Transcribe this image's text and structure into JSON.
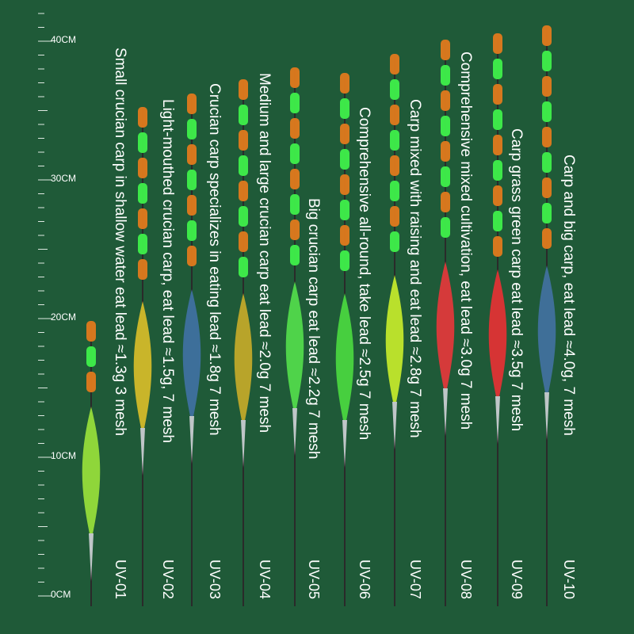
{
  "ruler": {
    "labels": [
      "0CM",
      "10CM",
      "20CM",
      "30CM",
      "40CM"
    ]
  },
  "products": [
    {
      "model": "UV-01",
      "description": "Small crucian carp in shallow water eat lead ≈1.3g 3 mesh"
    },
    {
      "model": "UV-02",
      "description": "Light-mouthed crucian carp, eat lead ≈1.5g, 7 mesh"
    },
    {
      "model": "UV-03",
      "description": "Crucian carp specializes in eating lead ≈1.8g 7 mesh"
    },
    {
      "model": "UV-04",
      "description": "Medium and large crucian carp eat lead ≈2.0g 7 mesh"
    },
    {
      "model": "UV-05",
      "description": "Big crucian carp eat lead ≈2.2g 7 mesh"
    },
    {
      "model": "UV-06",
      "description": "Comprehensive all-round, take lead ≈2.5g 7 mesh"
    },
    {
      "model": "UV-07",
      "description": "Carp mixed with raising and eat lead ≈2.8g 7 mesh"
    },
    {
      "model": "UV-08",
      "description": "Comprehensive mixed cultivation, eat lead ≈3.0g 7 mesh"
    },
    {
      "model": "UV-09",
      "description": "Carp grass green carp eat lead ≈3.5g 7 mesh"
    },
    {
      "model": "UV-10",
      "description": "Carp and big carp, eat lead ≈4.0g, 7 mesh"
    }
  ]
}
